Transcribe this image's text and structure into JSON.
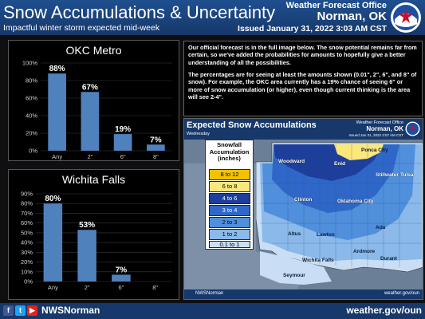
{
  "header": {
    "title": "Snow Accumulations & Uncertainty",
    "subtitle": "Impactful winter storm expected mid-week",
    "office": "Weather Forecast Office",
    "office_location": "Norman, OK",
    "issued": "Issued January 31, 2022 3:03 AM CST",
    "logo": "noaa-nws-logo"
  },
  "chart_data": [
    {
      "type": "bar",
      "title": "OKC Metro",
      "categories": [
        "Any",
        "2\"",
        "6\"",
        "8\""
      ],
      "values": [
        88,
        67,
        19,
        7
      ],
      "data_labels": [
        "88%",
        "67%",
        "19%",
        "7%"
      ],
      "ylim": [
        0,
        100
      ],
      "yticks": [
        "0%",
        "20%",
        "40%",
        "60%",
        "80%",
        "100%"
      ],
      "grid": true,
      "bar_color": "#4f81bd"
    },
    {
      "type": "bar",
      "title": "Wichita Falls",
      "categories": [
        "Any",
        "2\"",
        "6\"",
        "8\""
      ],
      "values": [
        80,
        53,
        7,
        0
      ],
      "data_labels": [
        "80%",
        "53%",
        "7%",
        ""
      ],
      "ylim": [
        0,
        90
      ],
      "yticks": [
        "0%",
        "10%",
        "20%",
        "30%",
        "40%",
        "50%",
        "60%",
        "70%",
        "80%",
        "90%"
      ],
      "grid": true,
      "bar_color": "#4f81bd"
    }
  ],
  "info": {
    "paragraph1": "Our official forecast is in the full image below. The snow potential remains far from certain, so we've added the probabilities for amounts to hopefully give a better understanding of all the possibilities.",
    "paragraph2": "The percentages are for seeing at least the amounts shown (0.01\", 2\", 6\", and 8\" of snow). For example, the OKC area currently has a 19% chance of seeing 6\" or more of snow accumulation (or higher), even though current thinking is the area will see 2-4\"."
  },
  "map": {
    "title": "Expected Snow Accumulations",
    "day": "Wednesday",
    "office": "Weather Forecast Office",
    "office_location": "Norman, OK",
    "issued": "Issued Jan 31, 2022 3:07 AM CST",
    "legend_title_line1": "Snowfall",
    "legend_title_line2": "Accumulation",
    "legend_title_line3": "(inches)",
    "legend": [
      {
        "label": "8 to 12",
        "color": "#f2c200"
      },
      {
        "label": "6 to 8",
        "color": "#fbe77a"
      },
      {
        "label": "4 to 6",
        "color": "#1d3f9b"
      },
      {
        "label": "3 to 4",
        "color": "#2f67c8"
      },
      {
        "label": "2 to 3",
        "color": "#4f8fdc"
      },
      {
        "label": "1 to 2",
        "color": "#8ab9ea"
      },
      {
        "label": "0.1 to 1",
        "color": "#c9def4"
      }
    ],
    "cities": [
      "Ponca City",
      "Woodward",
      "Enid",
      "Stillwater",
      "Tulsa",
      "Clinton",
      "Oklahoma City",
      "Altus",
      "Lawton",
      "Ada",
      "Ardmore",
      "Wichita Falls",
      "Durant",
      "Seymour"
    ],
    "footer_handle": "NWSNorman",
    "footer_site": "weather.gov/oun"
  },
  "footer": {
    "social_icons": [
      "facebook-icon",
      "twitter-icon",
      "youtube-icon"
    ],
    "handle": "NWSNorman",
    "site": "weather.gov/oun"
  }
}
